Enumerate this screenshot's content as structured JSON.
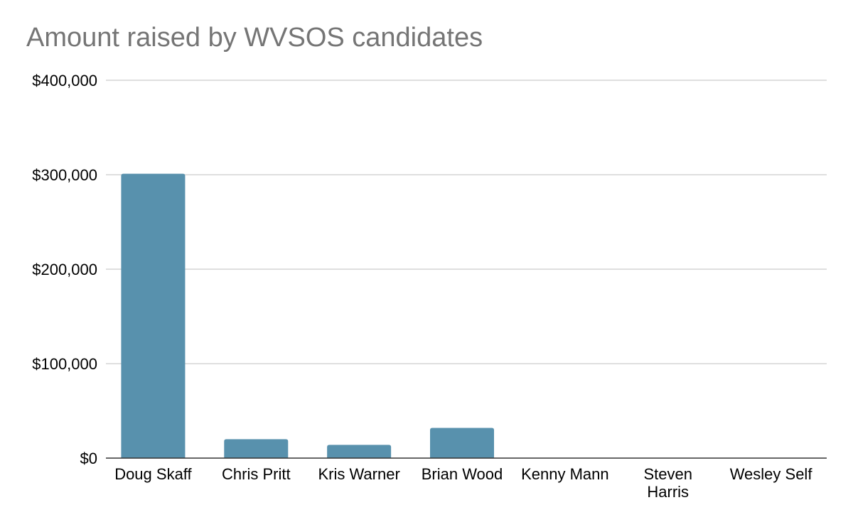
{
  "chart_data": {
    "type": "bar",
    "title": "Amount raised by WVSOS candidates",
    "xlabel": "",
    "ylabel": "",
    "categories": [
      "Doug Skaff",
      "Chris Pritt",
      "Kris Warner",
      "Brian Wood",
      "Kenny Mann",
      "Steven Harris",
      "Wesley Self"
    ],
    "values": [
      301000,
      20000,
      14000,
      32000,
      0,
      0,
      0
    ],
    "ylim": [
      0,
      400000
    ],
    "yticks": [
      0,
      100000,
      200000,
      300000,
      400000
    ],
    "ytick_labels": [
      "$0",
      "$100,000",
      "$200,000",
      "$300,000",
      "$400,000"
    ],
    "grid": true,
    "legend": "none",
    "colors": {
      "bar": "#5891ad",
      "grid": "#cccccc",
      "axis": "#333333",
      "title": "#757575"
    }
  }
}
